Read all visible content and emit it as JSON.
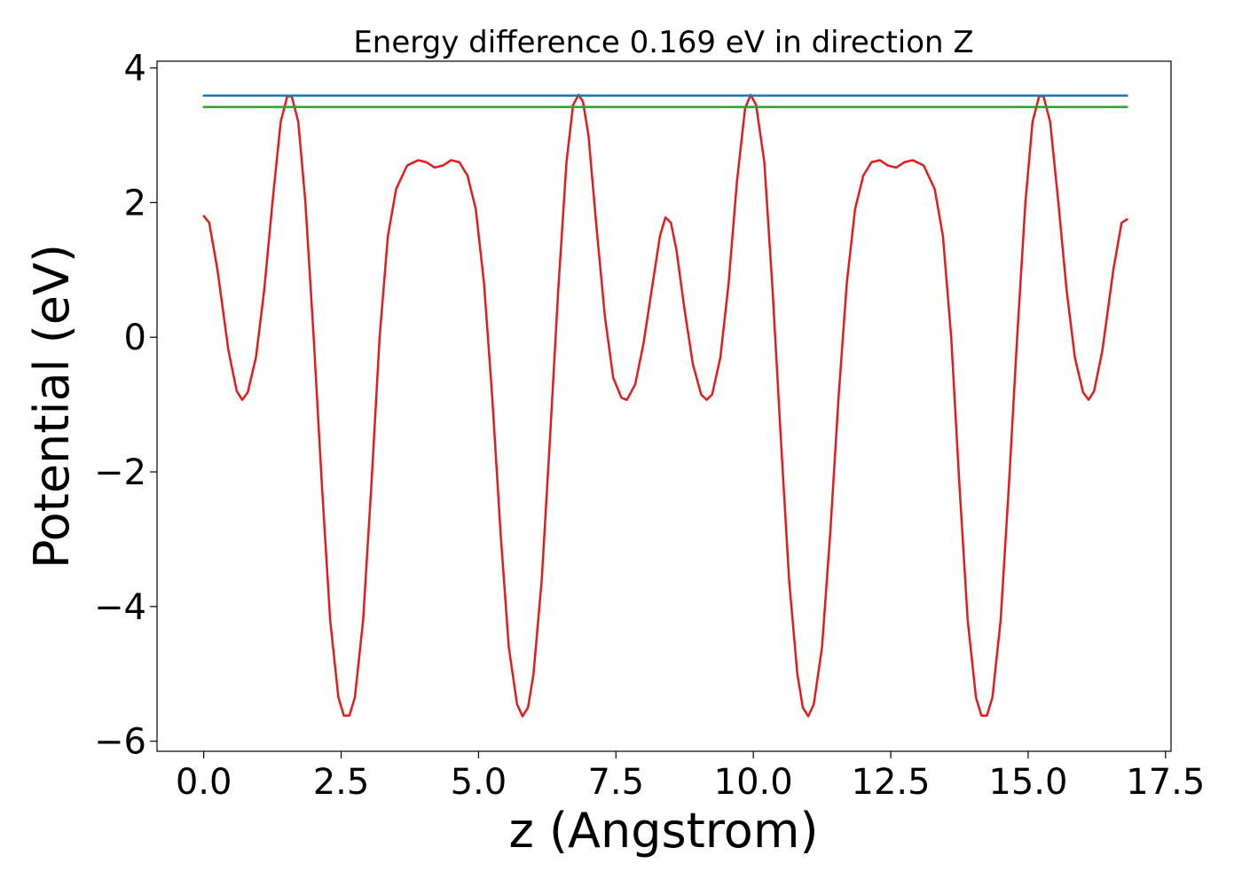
{
  "chart_data": {
    "type": "line",
    "title": "Energy difference 0.169 eV in direction Z",
    "xlabel": "z (Angstrom)",
    "ylabel": "Potential (eV)",
    "xlim": [
      -0.85,
      17.6
    ],
    "ylim": [
      -6.15,
      4.1
    ],
    "grid": false,
    "x_ticks": [
      0.0,
      2.5,
      5.0,
      7.5,
      10.0,
      12.5,
      15.0,
      17.5
    ],
    "x_tick_labels": [
      "0.0",
      "2.5",
      "5.0",
      "7.5",
      "10.0",
      "12.5",
      "15.0",
      "17.5"
    ],
    "y_ticks": [
      4,
      2,
      0,
      -2,
      -4,
      -6
    ],
    "y_tick_labels": [
      "4",
      "2",
      "0",
      "−2",
      "−4",
      "−6"
    ],
    "series": [
      {
        "color": "#e41a1c",
        "points": [
          [
            0.0,
            1.8
          ],
          [
            0.1,
            1.7
          ],
          [
            0.25,
            1.0
          ],
          [
            0.45,
            -0.2
          ],
          [
            0.6,
            -0.8
          ],
          [
            0.7,
            -0.93
          ],
          [
            0.8,
            -0.82
          ],
          [
            0.95,
            -0.3
          ],
          [
            1.1,
            0.7
          ],
          [
            1.25,
            2.0
          ],
          [
            1.4,
            3.2
          ],
          [
            1.52,
            3.58
          ],
          [
            1.6,
            3.58
          ],
          [
            1.72,
            3.2
          ],
          [
            1.85,
            2.0
          ],
          [
            2.0,
            0.0
          ],
          [
            2.15,
            -2.2
          ],
          [
            2.3,
            -4.2
          ],
          [
            2.45,
            -5.35
          ],
          [
            2.55,
            -5.62
          ],
          [
            2.65,
            -5.62
          ],
          [
            2.75,
            -5.35
          ],
          [
            2.9,
            -4.2
          ],
          [
            3.05,
            -2.2
          ],
          [
            3.2,
            0.0
          ],
          [
            3.35,
            1.5
          ],
          [
            3.5,
            2.2
          ],
          [
            3.7,
            2.55
          ],
          [
            3.9,
            2.63
          ],
          [
            4.05,
            2.6
          ],
          [
            4.2,
            2.52
          ],
          [
            4.35,
            2.55
          ],
          [
            4.5,
            2.63
          ],
          [
            4.65,
            2.6
          ],
          [
            4.8,
            2.4
          ],
          [
            4.95,
            1.9
          ],
          [
            5.1,
            0.8
          ],
          [
            5.25,
            -0.9
          ],
          [
            5.4,
            -2.9
          ],
          [
            5.55,
            -4.6
          ],
          [
            5.7,
            -5.45
          ],
          [
            5.8,
            -5.63
          ],
          [
            5.9,
            -5.5
          ],
          [
            6.0,
            -5.0
          ],
          [
            6.15,
            -3.6
          ],
          [
            6.3,
            -1.5
          ],
          [
            6.45,
            0.7
          ],
          [
            6.6,
            2.6
          ],
          [
            6.72,
            3.45
          ],
          [
            6.82,
            3.6
          ],
          [
            6.9,
            3.5
          ],
          [
            7.0,
            3.0
          ],
          [
            7.15,
            1.6
          ],
          [
            7.3,
            0.3
          ],
          [
            7.45,
            -0.6
          ],
          [
            7.6,
            -0.9
          ],
          [
            7.7,
            -0.93
          ],
          [
            7.85,
            -0.7
          ],
          [
            8.0,
            -0.1
          ],
          [
            8.15,
            0.7
          ],
          [
            8.3,
            1.5
          ],
          [
            8.4,
            1.78
          ],
          [
            8.5,
            1.7
          ],
          [
            8.6,
            1.3
          ],
          [
            8.75,
            0.4
          ],
          [
            8.9,
            -0.4
          ],
          [
            9.05,
            -0.85
          ],
          [
            9.15,
            -0.93
          ],
          [
            9.25,
            -0.85
          ],
          [
            9.4,
            -0.3
          ],
          [
            9.55,
            0.8
          ],
          [
            9.7,
            2.3
          ],
          [
            9.85,
            3.4
          ],
          [
            9.95,
            3.6
          ],
          [
            10.05,
            3.45
          ],
          [
            10.2,
            2.6
          ],
          [
            10.35,
            0.7
          ],
          [
            10.5,
            -1.5
          ],
          [
            10.65,
            -3.6
          ],
          [
            10.8,
            -5.0
          ],
          [
            10.9,
            -5.5
          ],
          [
            11.0,
            -5.63
          ],
          [
            11.1,
            -5.45
          ],
          [
            11.25,
            -4.6
          ],
          [
            11.4,
            -2.9
          ],
          [
            11.55,
            -0.9
          ],
          [
            11.7,
            0.8
          ],
          [
            11.85,
            1.9
          ],
          [
            12.0,
            2.4
          ],
          [
            12.15,
            2.6
          ],
          [
            12.3,
            2.63
          ],
          [
            12.45,
            2.55
          ],
          [
            12.6,
            2.52
          ],
          [
            12.75,
            2.6
          ],
          [
            12.9,
            2.63
          ],
          [
            13.1,
            2.55
          ],
          [
            13.3,
            2.2
          ],
          [
            13.45,
            1.5
          ],
          [
            13.6,
            0.0
          ],
          [
            13.75,
            -2.2
          ],
          [
            13.9,
            -4.2
          ],
          [
            14.05,
            -5.35
          ],
          [
            14.15,
            -5.62
          ],
          [
            14.25,
            -5.62
          ],
          [
            14.35,
            -5.35
          ],
          [
            14.5,
            -4.2
          ],
          [
            14.65,
            -2.2
          ],
          [
            14.8,
            0.0
          ],
          [
            14.95,
            2.0
          ],
          [
            15.08,
            3.2
          ],
          [
            15.2,
            3.58
          ],
          [
            15.28,
            3.58
          ],
          [
            15.4,
            3.2
          ],
          [
            15.55,
            2.0
          ],
          [
            15.7,
            0.7
          ],
          [
            15.85,
            -0.3
          ],
          [
            16.0,
            -0.82
          ],
          [
            16.1,
            -0.93
          ],
          [
            16.2,
            -0.8
          ],
          [
            16.35,
            -0.2
          ],
          [
            16.55,
            1.0
          ],
          [
            16.7,
            1.7
          ],
          [
            16.8,
            1.75
          ]
        ]
      },
      {
        "color": "#1f77b4",
        "points": [
          [
            0.0,
            3.59
          ],
          [
            16.8,
            3.59
          ]
        ]
      },
      {
        "color": "#2ca02c",
        "points": [
          [
            0.0,
            3.42
          ],
          [
            16.8,
            3.42
          ]
        ]
      }
    ]
  }
}
